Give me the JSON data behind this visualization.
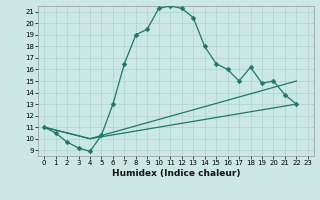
{
  "xlabel": "Humidex (Indice chaleur)",
  "bg_color": "#cce8e4",
  "grid_color": "#aad4cc",
  "line_color": "#1a7a6a",
  "xlim": [
    -0.5,
    23.5
  ],
  "ylim": [
    8.5,
    21.5
  ],
  "xticks": [
    0,
    1,
    2,
    3,
    4,
    5,
    6,
    7,
    8,
    9,
    10,
    11,
    12,
    13,
    14,
    15,
    16,
    17,
    18,
    19,
    20,
    21,
    22,
    23
  ],
  "yticks": [
    9,
    10,
    11,
    12,
    13,
    14,
    15,
    16,
    17,
    18,
    19,
    20,
    21
  ],
  "line1_x": [
    0,
    1,
    2,
    3,
    4,
    5,
    6,
    7,
    8,
    9,
    10,
    11,
    12,
    13,
    14,
    15,
    16,
    17,
    18,
    19,
    20,
    21,
    22
  ],
  "line1_y": [
    11,
    10.5,
    9.7,
    9.2,
    8.9,
    10.3,
    13.0,
    16.5,
    19.0,
    19.5,
    21.3,
    21.5,
    21.3,
    20.5,
    18.0,
    16.5,
    16.0,
    15.0,
    16.2,
    14.8,
    15.0,
    13.8,
    13.0
  ],
  "line2_x": [
    0,
    4,
    22
  ],
  "line2_y": [
    11,
    10.0,
    15.0
  ],
  "line3_x": [
    0,
    4,
    22
  ],
  "line3_y": [
    11,
    10.0,
    13.0
  ],
  "markersize": 2.5,
  "linewidth": 0.9,
  "tick_fontsize": 5.0,
  "xlabel_fontsize": 6.5
}
